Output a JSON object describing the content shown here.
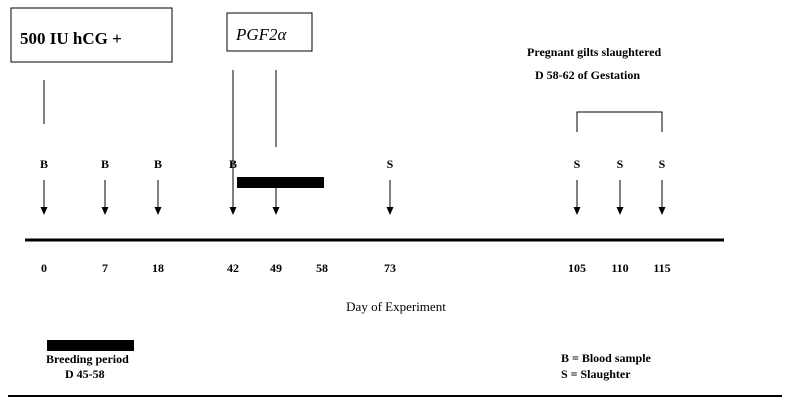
{
  "boxes": {
    "hcg_label": "500 IU hCG +",
    "pgf_label": "PGF2α"
  },
  "slaughter_note": {
    "line1": "Pregnant gilts slaughtered",
    "line2": "D 58-62 of Gestation"
  },
  "axis": {
    "title": "Day of Experiment"
  },
  "events": [
    {
      "day": "0",
      "code": "B"
    },
    {
      "day": "7",
      "code": "B"
    },
    {
      "day": "18",
      "code": "B"
    },
    {
      "day": "42",
      "code": "B"
    },
    {
      "day": "49",
      "code": ""
    },
    {
      "day": "58",
      "code": ""
    },
    {
      "day": "73",
      "code": "S"
    },
    {
      "day": "105",
      "code": "S"
    },
    {
      "day": "110",
      "code": "S"
    },
    {
      "day": "115",
      "code": "S"
    }
  ],
  "breeding": {
    "label": "Breeding period",
    "range": "D 45-58"
  },
  "legend": {
    "blood": "B = Blood sample",
    "slaughter": "S = Slaughter"
  }
}
